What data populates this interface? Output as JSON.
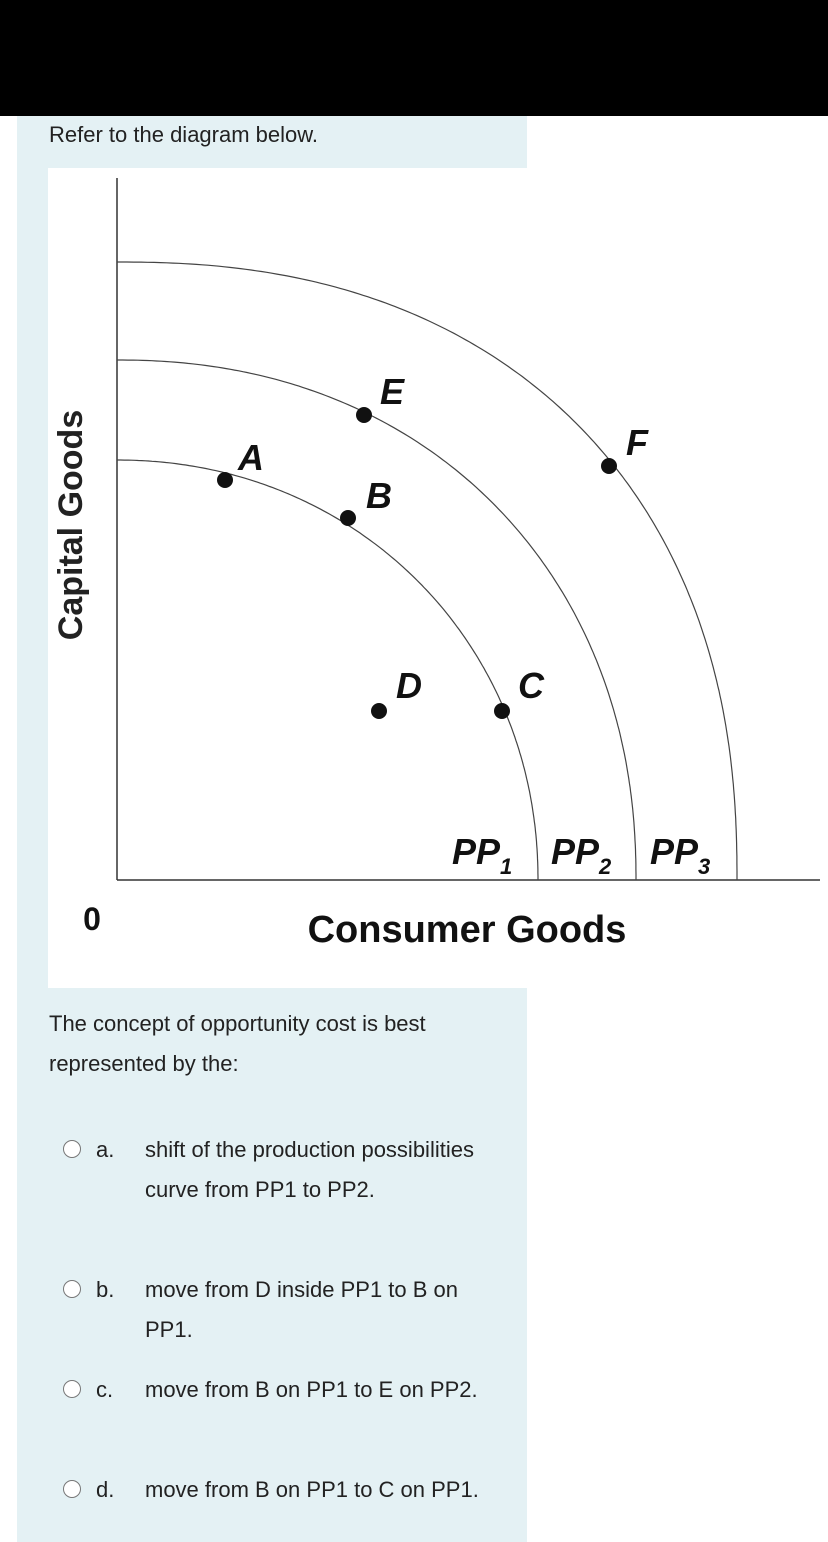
{
  "intro": "Refer to the diagram below.",
  "diagram": {
    "y_axis_label": "Capital Goods",
    "x_axis_label": "Consumer Goods",
    "origin_label": "0",
    "points": [
      "A",
      "B",
      "C",
      "D",
      "E",
      "F"
    ],
    "curves": [
      {
        "label": "PP",
        "subscript": "1"
      },
      {
        "label": "PP",
        "subscript": "2"
      },
      {
        "label": "PP",
        "subscript": "3"
      }
    ]
  },
  "question": "The concept of opportunity cost is best represented by the:",
  "options": [
    {
      "letter": "a.",
      "text": "shift of the production possibilities curve from PP1 to PP2."
    },
    {
      "letter": "b.",
      "text": "move from D inside PP1 to B on PP1."
    },
    {
      "letter": "c.",
      "text": "move from B on PP1 to E on PP2."
    },
    {
      "letter": "d.",
      "text": "move from B on PP1 to C on PP1."
    }
  ]
}
